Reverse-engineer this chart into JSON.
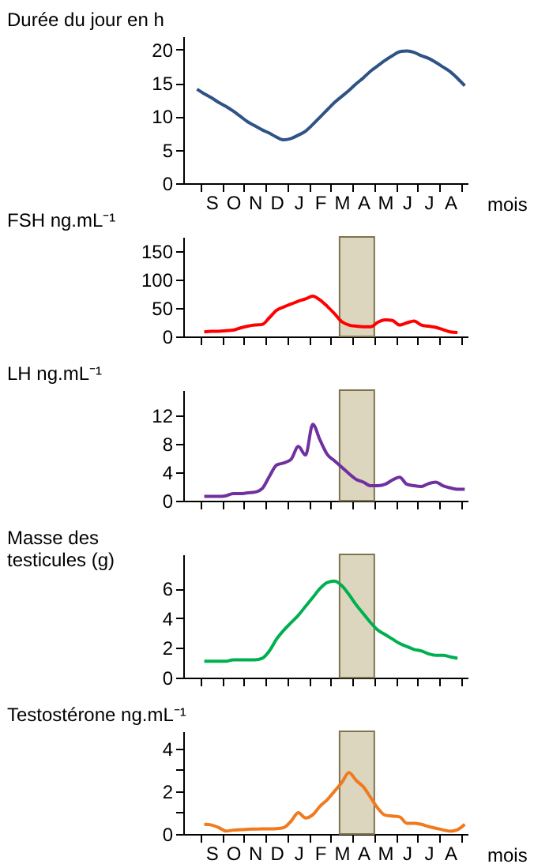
{
  "chart_data": [
    {
      "type": "line",
      "ylabel": "Durée du jour en h",
      "xlabel": "mois",
      "ylim": [
        0,
        22
      ],
      "yticks": [
        0,
        5,
        10,
        15,
        20
      ],
      "categories": [
        null,
        null,
        null,
        "S",
        null,
        null,
        "O",
        null,
        null,
        "N",
        null,
        null,
        "D",
        null,
        null,
        "J",
        null,
        null,
        "F",
        null,
        null,
        "M",
        null,
        null,
        "A",
        null,
        null,
        "M",
        null,
        null,
        "J",
        null,
        null,
        "J",
        null,
        null,
        "A",
        null,
        null
      ],
      "series": [
        {
          "color": "#2f5386",
          "values": [
            null,
            14.1,
            13.4,
            12.8,
            12.1,
            11.5,
            10.8,
            10.0,
            9.2,
            8.6,
            8.0,
            7.5,
            6.9,
            6.5,
            6.7,
            7.2,
            7.8,
            8.8,
            9.9,
            11.0,
            12.1,
            13.0,
            13.9,
            14.9,
            15.8,
            16.8,
            17.6,
            18.4,
            19.1,
            19.7,
            19.8,
            19.6,
            19.1,
            18.7,
            18.1,
            17.4,
            16.7,
            15.7,
            14.6
          ]
        }
      ]
    },
    {
      "type": "line",
      "ylabel": "FSH ng.mL⁻¹",
      "tick_labels": "y",
      "ylim": [
        0,
        175
      ],
      "yticks": [
        0,
        50,
        100,
        150
      ],
      "categories": [
        null,
        null,
        null,
        null,
        null,
        null,
        null,
        null,
        null,
        null,
        null,
        null,
        null,
        null,
        null,
        null,
        null,
        null,
        null,
        null,
        null,
        null,
        null,
        null,
        null,
        null,
        null,
        null,
        null,
        null,
        null,
        null,
        null,
        null,
        null,
        null,
        null,
        null,
        null
      ],
      "series": [
        {
          "color": "#ff0000",
          "values": [
            null,
            null,
            8,
            9,
            9,
            10,
            11,
            15,
            18,
            20,
            21,
            33,
            46,
            52,
            57,
            62,
            66,
            71,
            64,
            53,
            40,
            26,
            20,
            18,
            17,
            17,
            25,
            29,
            28,
            20,
            24,
            27,
            20,
            18,
            16,
            12,
            8,
            7,
            null
          ]
        }
      ]
    },
    {
      "type": "line",
      "ylabel": "LH ng.mL⁻¹",
      "tick_labels": "y",
      "ylim": [
        0,
        15.5
      ],
      "yticks": [
        0,
        4,
        8,
        12
      ],
      "categories": [
        null,
        null,
        null,
        null,
        null,
        null,
        null,
        null,
        null,
        null,
        null,
        null,
        null,
        null,
        null,
        null,
        null,
        null,
        null,
        null,
        null,
        null,
        null,
        null,
        null,
        null,
        null,
        null,
        null,
        null,
        null,
        null,
        null,
        null,
        null,
        null,
        null,
        null,
        null
      ],
      "series": [
        {
          "color": "#7030a0",
          "values": [
            null,
            null,
            0.6,
            0.6,
            0.6,
            0.7,
            1.0,
            1.0,
            1.1,
            1.2,
            1.7,
            3.4,
            5.0,
            5.3,
            5.8,
            7.6,
            6.4,
            10.7,
            8.5,
            6.5,
            5.6,
            4.7,
            3.8,
            3.0,
            2.6,
            2.1,
            2.1,
            2.3,
            2.9,
            3.3,
            2.3,
            2.1,
            2.0,
            2.4,
            2.6,
            2.1,
            1.8,
            1.6,
            1.6
          ]
        }
      ]
    },
    {
      "type": "line",
      "ylabel": "Masse des testicules (g)",
      "tick_labels": "y",
      "ylim": [
        0,
        8.3
      ],
      "yticks": [
        0,
        2,
        4,
        6
      ],
      "categories": [
        null,
        null,
        null,
        null,
        null,
        null,
        null,
        null,
        null,
        null,
        null,
        null,
        null,
        null,
        null,
        null,
        null,
        null,
        null,
        null,
        null,
        null,
        null,
        null,
        null,
        null,
        null,
        null,
        null,
        null,
        null,
        null,
        null,
        null,
        null,
        null,
        null,
        null,
        null
      ],
      "series": [
        {
          "color": "#00b050",
          "values": [
            null,
            null,
            1.1,
            1.1,
            1.1,
            1.1,
            1.2,
            1.2,
            1.2,
            1.2,
            1.3,
            1.8,
            2.6,
            3.2,
            3.7,
            4.2,
            4.8,
            5.4,
            6.0,
            6.4,
            6.5,
            6.2,
            5.6,
            4.9,
            4.3,
            3.7,
            3.2,
            2.9,
            2.6,
            2.3,
            2.1,
            1.9,
            1.8,
            1.6,
            1.5,
            1.5,
            1.4,
            1.3,
            null
          ]
        }
      ]
    },
    {
      "type": "line",
      "ylabel": "Testostérone  ng.mL⁻¹",
      "xlabel": "mois",
      "ylim": [
        0,
        4.8
      ],
      "yticks": [
        0,
        {
          "value": 1,
          "label": null
        },
        2,
        {
          "value": 3,
          "label": null
        },
        4
      ],
      "categories": [
        null,
        null,
        null,
        "S",
        null,
        null,
        "O",
        null,
        null,
        "N",
        null,
        null,
        "D",
        null,
        null,
        "J",
        null,
        null,
        "F",
        null,
        null,
        "M",
        null,
        null,
        "A",
        null,
        null,
        "M",
        null,
        null,
        "J",
        null,
        null,
        "J",
        null,
        null,
        "A",
        null,
        null
      ],
      "series": [
        {
          "color": "#f07a1e",
          "values": [
            null,
            null,
            0.45,
            0.42,
            0.3,
            0.14,
            0.18,
            0.2,
            0.22,
            0.23,
            0.24,
            0.24,
            0.25,
            0.3,
            0.6,
            1.0,
            0.75,
            0.9,
            1.3,
            1.6,
            2.0,
            2.4,
            2.87,
            2.5,
            2.2,
            1.7,
            1.2,
            0.88,
            0.84,
            0.8,
            0.5,
            0.5,
            0.45,
            0.35,
            0.27,
            0.19,
            0.13,
            0.2,
            0.45
          ]
        }
      ]
    }
  ]
}
